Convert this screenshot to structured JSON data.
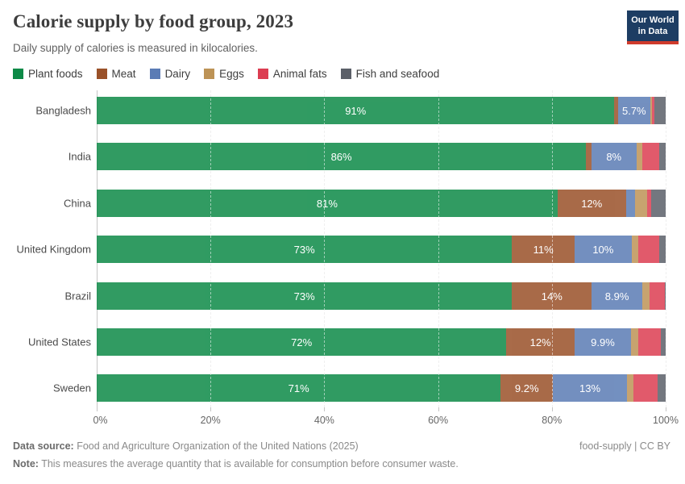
{
  "header": {
    "title": "Calorie supply by food group, 2023",
    "subtitle": "Daily supply of calories is measured in kilocalories.",
    "logo_line1": "Our World",
    "logo_line2": "in Data",
    "logo_bg_color": "#1d3d63",
    "logo_stripe_color": "#cf3b2c"
  },
  "chart_data": {
    "type": "bar",
    "stacked": true,
    "orientation": "horizontal",
    "title": "Calorie supply by food group, 2023",
    "xlabel": "",
    "ylabel": "",
    "xlim": [
      0,
      100
    ],
    "x_ticks": [
      "0%",
      "20%",
      "40%",
      "60%",
      "80%",
      "100%"
    ],
    "x_tick_values": [
      0,
      20,
      40,
      60,
      80,
      100
    ],
    "grid": "vertical-dashed",
    "legend_position": "top",
    "label_min_pct": 5,
    "categories": [
      "Bangladesh",
      "India",
      "China",
      "United Kingdom",
      "Brazil",
      "United States",
      "Sweden"
    ],
    "series": [
      {
        "name": "Plant foods",
        "color": "#0d8a47",
        "values": [
          91,
          86,
          81,
          73,
          73,
          72,
          71
        ]
      },
      {
        "name": "Meat",
        "color": "#9a5129",
        "values": [
          0.6,
          0.9,
          12,
          11,
          14,
          12,
          9.2
        ]
      },
      {
        "name": "Dairy",
        "color": "#5b7cb5",
        "values": [
          5.7,
          8,
          1.6,
          10,
          8.9,
          9.9,
          13
        ]
      },
      {
        "name": "Eggs",
        "color": "#bd9356",
        "values": [
          0.3,
          1.0,
          2.1,
          1.2,
          1.3,
          1.3,
          1.2
        ]
      },
      {
        "name": "Animal fats",
        "color": "#dc3d51",
        "values": [
          0.4,
          3.0,
          0.7,
          3.7,
          2.6,
          3.9,
          4.2
        ]
      },
      {
        "name": "Fish and seafood",
        "color": "#5b5f68",
        "values": [
          2.0,
          1.1,
          2.6,
          1.1,
          0.2,
          0.9,
          1.4
        ]
      }
    ],
    "visible_bar_labels": {
      "Bangladesh": [
        "91%",
        "5.7%"
      ],
      "India": [
        "86%",
        "8%"
      ],
      "China": [
        "81%",
        "12%"
      ],
      "United Kingdom": [
        "73%",
        "11%",
        "10%"
      ],
      "Brazil": [
        "73%",
        "14%",
        "8.9%"
      ],
      "United States": [
        "72%",
        "12%",
        "9.9%"
      ],
      "Sweden": [
        "71%",
        "9.2%",
        "13%"
      ]
    }
  },
  "footer": {
    "source_label": "Data source:",
    "source_text": " Food and Agriculture Organization of the United Nations (2025)",
    "note_label": "Note:",
    "note_text": " This measures the average quantity that is available for consumption before consumer waste.",
    "attribution": "food-supply | CC BY"
  }
}
